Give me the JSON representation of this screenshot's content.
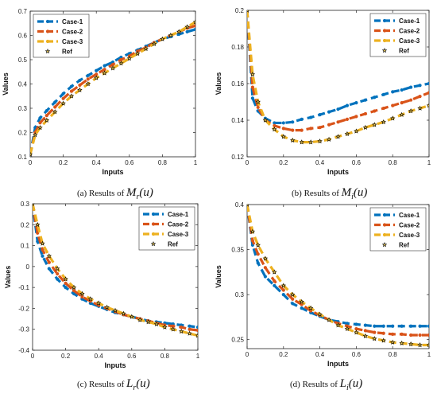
{
  "colors": {
    "Case-1": "#0072BD",
    "Case-2": "#D95319",
    "Case-3": "#EDB120",
    "Ref": "#000000",
    "ref_fill": "#F0D060"
  },
  "chart_data": [
    {
      "type": "line",
      "caption": "(a) Results of",
      "caption_symbol": "M_r(u)",
      "xlabel": "Inputs",
      "ylabel": "Values",
      "xlim": [
        0,
        1
      ],
      "ylim": [
        0.1,
        0.7
      ],
      "xticks": [
        "0",
        "0.2",
        "0.4",
        "0.6",
        "0.8",
        "1"
      ],
      "yticks": [
        "0.1",
        "0.2",
        "0.3",
        "0.4",
        "0.5",
        "0.6",
        "0.7"
      ],
      "legend": [
        "Case-1",
        "Case-2",
        "Case-3",
        "Ref"
      ],
      "legend_position": "top-left",
      "x": [
        0,
        0.03,
        0.06,
        0.1,
        0.15,
        0.2,
        0.25,
        0.3,
        0.35,
        0.4,
        0.45,
        0.5,
        0.55,
        0.6,
        0.65,
        0.7,
        0.75,
        0.8,
        0.85,
        0.9,
        0.95,
        1
      ],
      "series": [
        {
          "name": "Case-1",
          "values": [
            0.11,
            0.22,
            0.26,
            0.29,
            0.325,
            0.36,
            0.39,
            0.415,
            0.435,
            0.455,
            0.475,
            0.49,
            0.51,
            0.525,
            0.54,
            0.555,
            0.57,
            0.585,
            0.595,
            0.605,
            0.615,
            0.625
          ]
        },
        {
          "name": "Case-2",
          "values": [
            0.11,
            0.2,
            0.24,
            0.27,
            0.305,
            0.34,
            0.37,
            0.395,
            0.42,
            0.44,
            0.46,
            0.48,
            0.5,
            0.515,
            0.535,
            0.55,
            0.57,
            0.585,
            0.6,
            0.615,
            0.63,
            0.64
          ]
        },
        {
          "name": "Case-3",
          "values": [
            0.11,
            0.19,
            0.22,
            0.25,
            0.285,
            0.32,
            0.35,
            0.375,
            0.4,
            0.425,
            0.445,
            0.465,
            0.485,
            0.505,
            0.525,
            0.545,
            0.565,
            0.585,
            0.6,
            0.615,
            0.635,
            0.655
          ]
        },
        {
          "name": "Ref",
          "values": [
            0.11,
            0.19,
            0.22,
            0.25,
            0.285,
            0.32,
            0.35,
            0.375,
            0.4,
            0.425,
            0.445,
            0.465,
            0.485,
            0.505,
            0.525,
            0.545,
            0.565,
            0.585,
            0.6,
            0.615,
            0.635,
            0.655
          ]
        }
      ]
    },
    {
      "type": "line",
      "caption": "(b) Results of",
      "caption_symbol": "M_i(u)",
      "xlabel": "Inputs",
      "ylabel": "Values",
      "xlim": [
        0,
        1
      ],
      "ylim": [
        0.12,
        0.2
      ],
      "xticks": [
        "0",
        "0.2",
        "0.4",
        "0.6",
        "0.8",
        "1"
      ],
      "yticks": [
        "0.12",
        "0.14",
        "0.16",
        "0.18",
        "0.2"
      ],
      "legend": [
        "Case-1",
        "Case-2",
        "Case-3",
        "Ref"
      ],
      "legend_position": "top-right",
      "x": [
        0,
        0.03,
        0.06,
        0.1,
        0.15,
        0.2,
        0.25,
        0.3,
        0.35,
        0.4,
        0.45,
        0.5,
        0.55,
        0.6,
        0.65,
        0.7,
        0.75,
        0.8,
        0.85,
        0.9,
        0.95,
        1
      ],
      "series": [
        {
          "name": "Case-1",
          "values": [
            0.2,
            0.152,
            0.145,
            0.141,
            0.1385,
            0.1385,
            0.139,
            0.1405,
            0.1415,
            0.143,
            0.1445,
            0.146,
            0.148,
            0.1495,
            0.151,
            0.1525,
            0.154,
            0.1555,
            0.1565,
            0.158,
            0.159,
            0.16
          ]
        },
        {
          "name": "Case-2",
          "values": [
            0.2,
            0.158,
            0.147,
            0.14,
            0.137,
            0.1355,
            0.1345,
            0.1345,
            0.1355,
            0.136,
            0.1375,
            0.139,
            0.1405,
            0.142,
            0.1435,
            0.145,
            0.1465,
            0.148,
            0.1495,
            0.151,
            0.153,
            0.155
          ]
        },
        {
          "name": "Case-3",
          "values": [
            0.2,
            0.165,
            0.15,
            0.14,
            0.135,
            0.131,
            0.129,
            0.128,
            0.128,
            0.1285,
            0.1295,
            0.131,
            0.1325,
            0.134,
            0.136,
            0.1375,
            0.139,
            0.141,
            0.143,
            0.145,
            0.1465,
            0.148
          ]
        },
        {
          "name": "Ref",
          "values": [
            0.2,
            0.165,
            0.15,
            0.14,
            0.135,
            0.131,
            0.129,
            0.128,
            0.128,
            0.1285,
            0.1295,
            0.131,
            0.1325,
            0.134,
            0.136,
            0.1375,
            0.139,
            0.141,
            0.143,
            0.145,
            0.1465,
            0.148
          ]
        }
      ]
    },
    {
      "type": "line",
      "caption": "(c) Results of",
      "caption_symbol": "L_r(u)",
      "xlabel": "Inputs",
      "ylabel": "Values",
      "xlim": [
        0,
        1
      ],
      "ylim": [
        -0.4,
        0.3
      ],
      "xticks": [
        "0",
        "0.2",
        "0.4",
        "0.6",
        "0.8",
        "1"
      ],
      "yticks": [
        "-0.4",
        "-0.3",
        "-0.2",
        "-0.1",
        "0",
        "0.1",
        "0.2",
        "0.3"
      ],
      "legend": [
        "Case-1",
        "Case-2",
        "Case-3",
        "Ref"
      ],
      "legend_position": "top-right",
      "x": [
        0,
        0.03,
        0.06,
        0.1,
        0.15,
        0.2,
        0.25,
        0.3,
        0.35,
        0.4,
        0.45,
        0.5,
        0.55,
        0.6,
        0.65,
        0.7,
        0.75,
        0.8,
        0.85,
        0.9,
        0.95,
        1
      ],
      "series": [
        {
          "name": "Case-1",
          "values": [
            0.3,
            0.12,
            0.05,
            -0.01,
            -0.06,
            -0.1,
            -0.13,
            -0.155,
            -0.175,
            -0.19,
            -0.205,
            -0.22,
            -0.23,
            -0.24,
            -0.25,
            -0.26,
            -0.265,
            -0.27,
            -0.275,
            -0.28,
            -0.285,
            -0.29
          ]
        },
        {
          "name": "Case-2",
          "values": [
            0.3,
            0.16,
            0.08,
            0.02,
            -0.035,
            -0.08,
            -0.115,
            -0.145,
            -0.165,
            -0.185,
            -0.2,
            -0.215,
            -0.23,
            -0.24,
            -0.25,
            -0.26,
            -0.27,
            -0.28,
            -0.285,
            -0.29,
            -0.3,
            -0.305
          ]
        },
        {
          "name": "Case-3",
          "values": [
            0.3,
            0.2,
            0.11,
            0.05,
            -0.01,
            -0.06,
            -0.1,
            -0.13,
            -0.155,
            -0.175,
            -0.195,
            -0.21,
            -0.225,
            -0.24,
            -0.255,
            -0.265,
            -0.275,
            -0.29,
            -0.3,
            -0.31,
            -0.32,
            -0.33
          ]
        },
        {
          "name": "Ref",
          "values": [
            0.3,
            0.2,
            0.11,
            0.05,
            -0.01,
            -0.06,
            -0.1,
            -0.13,
            -0.155,
            -0.175,
            -0.195,
            -0.21,
            -0.225,
            -0.24,
            -0.255,
            -0.265,
            -0.275,
            -0.29,
            -0.3,
            -0.31,
            -0.32,
            -0.33
          ]
        }
      ]
    },
    {
      "type": "line",
      "caption": "(d) Results of",
      "caption_symbol": "L_i(u)",
      "xlabel": "Inputs",
      "ylabel": "Values",
      "xlim": [
        0,
        1
      ],
      "ylim": [
        0.24,
        0.4
      ],
      "xticks": [
        "0",
        "0.2",
        "0.4",
        "0.6",
        "0.8",
        "1"
      ],
      "yticks": [
        "0.25",
        "0.3",
        "0.35",
        "0.4"
      ],
      "legend": [
        "Case-1",
        "Case-2",
        "Case-3",
        "Ref"
      ],
      "legend_position": "top-right",
      "x": [
        0,
        0.03,
        0.06,
        0.1,
        0.15,
        0.2,
        0.25,
        0.3,
        0.35,
        0.4,
        0.45,
        0.5,
        0.55,
        0.6,
        0.65,
        0.7,
        0.75,
        0.8,
        0.85,
        0.9,
        0.95,
        1
      ],
      "series": [
        {
          "name": "Case-1",
          "values": [
            0.4,
            0.355,
            0.335,
            0.32,
            0.31,
            0.3,
            0.29,
            0.285,
            0.28,
            0.276,
            0.272,
            0.27,
            0.268,
            0.267,
            0.266,
            0.265,
            0.265,
            0.265,
            0.265,
            0.265,
            0.265,
            0.265
          ]
        },
        {
          "name": "Case-2",
          "values": [
            0.4,
            0.36,
            0.345,
            0.33,
            0.315,
            0.305,
            0.295,
            0.289,
            0.282,
            0.277,
            0.272,
            0.268,
            0.265,
            0.262,
            0.26,
            0.258,
            0.257,
            0.256,
            0.256,
            0.255,
            0.255,
            0.255
          ]
        },
        {
          "name": "Case-3",
          "values": [
            0.4,
            0.37,
            0.355,
            0.34,
            0.325,
            0.31,
            0.3,
            0.292,
            0.285,
            0.278,
            0.272,
            0.266,
            0.262,
            0.258,
            0.254,
            0.251,
            0.249,
            0.247,
            0.246,
            0.245,
            0.244,
            0.244
          ]
        },
        {
          "name": "Ref",
          "values": [
            0.4,
            0.37,
            0.355,
            0.34,
            0.325,
            0.31,
            0.3,
            0.292,
            0.285,
            0.278,
            0.272,
            0.266,
            0.262,
            0.258,
            0.254,
            0.251,
            0.249,
            0.247,
            0.246,
            0.245,
            0.244,
            0.244
          ]
        }
      ]
    }
  ]
}
